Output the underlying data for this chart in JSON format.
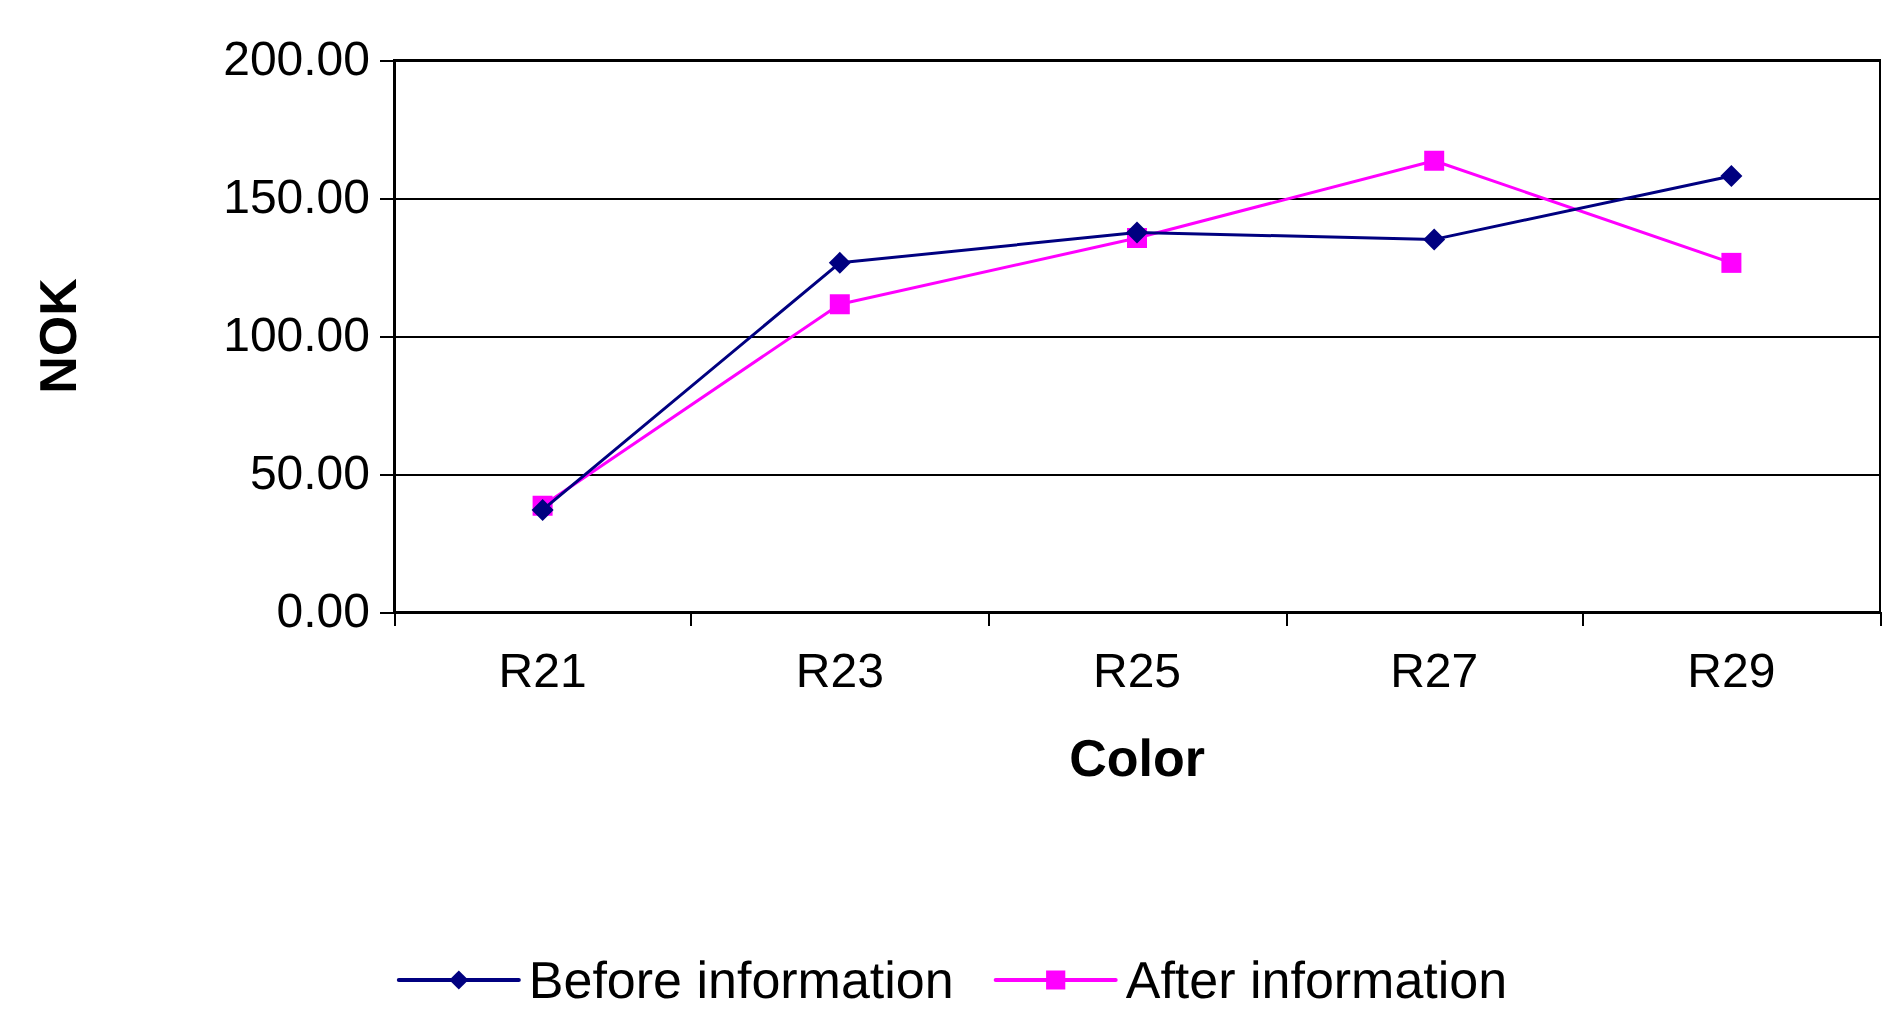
{
  "chart_data": {
    "type": "line",
    "xlabel": "Color",
    "ylabel": "NOK",
    "categories": [
      "R21",
      "R23",
      "R25",
      "R27",
      "R29"
    ],
    "series": [
      {
        "name": "Before information",
        "color": "#000080",
        "marker": "diamond",
        "values": [
          37,
          126.5,
          137.5,
          135,
          158
        ]
      },
      {
        "name": "After information",
        "color": "#ff00ff",
        "marker": "square",
        "values": [
          38.5,
          111.5,
          135.5,
          163.5,
          126.5
        ]
      }
    ],
    "ylim": [
      0,
      200
    ],
    "yticks": [
      {
        "value": 0,
        "label": "0.00"
      },
      {
        "value": 50,
        "label": "50.00"
      },
      {
        "value": 100,
        "label": "100.00"
      },
      {
        "value": 150,
        "label": "150.00"
      },
      {
        "value": 200,
        "label": "200.00"
      }
    ],
    "grid": "y",
    "legend": "bottom",
    "line_style": "solid"
  }
}
